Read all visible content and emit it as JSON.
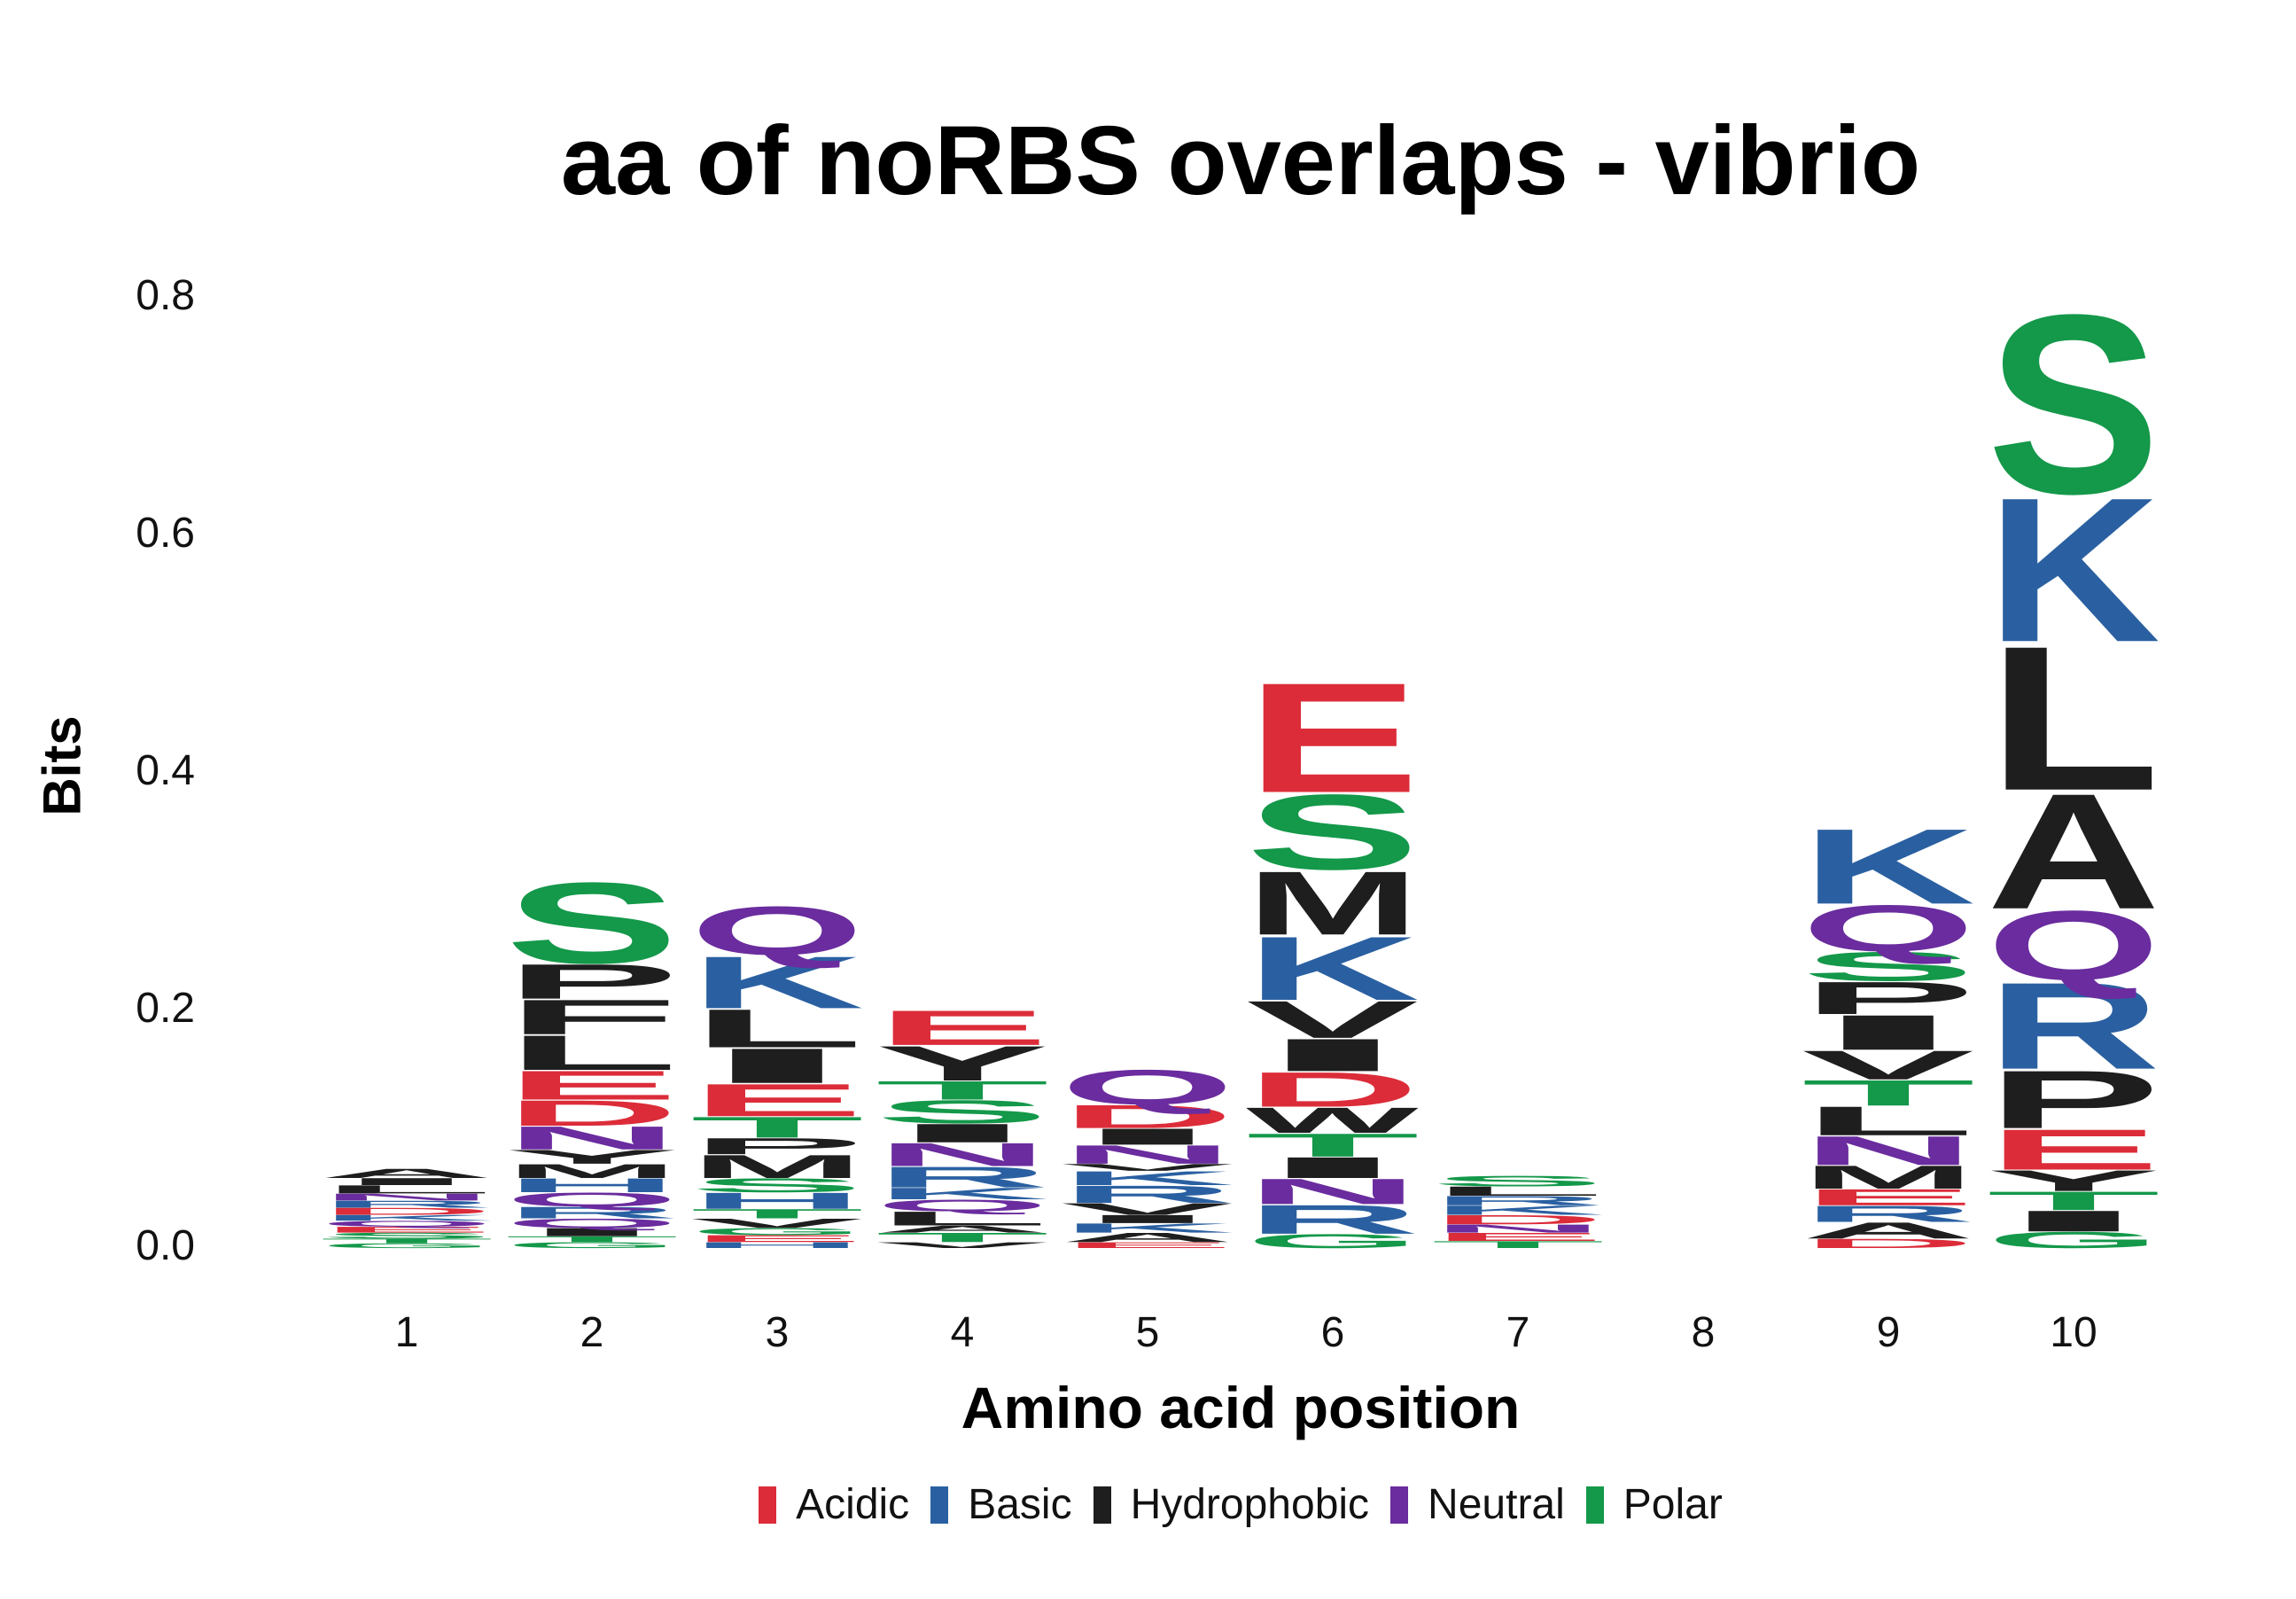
{
  "chart_data": {
    "type": "sequence-logo",
    "title": "aa of noRBS overlaps - vibrio",
    "xlabel": "Amino acid position",
    "ylabel": "Bits",
    "ylim": [
      0,
      0.8
    ],
    "yticks": [
      "0.0",
      "0.2",
      "0.4",
      "0.6",
      "0.8"
    ],
    "positions": [
      "1",
      "2",
      "3",
      "4",
      "5",
      "6",
      "7",
      "8",
      "9",
      "10"
    ],
    "legend": [
      {
        "label": "Acidic",
        "color": "#DC2C39"
      },
      {
        "label": "Basic",
        "color": "#2A60A1"
      },
      {
        "label": "Hydrophobic",
        "color": "#1E1E1E"
      },
      {
        "label": "Neutral",
        "color": "#6A2C9E"
      },
      {
        "label": "Polar",
        "color": "#14984A"
      }
    ],
    "stacks": [
      {
        "position": "1",
        "letters": [
          {
            "aa": "G",
            "bits": 0.004
          },
          {
            "aa": "T",
            "bits": 0.004
          },
          {
            "aa": "S",
            "bits": 0.005
          },
          {
            "aa": "E",
            "bits": 0.005
          },
          {
            "aa": "Q",
            "bits": 0.005
          },
          {
            "aa": "K",
            "bits": 0.005
          },
          {
            "aa": "D",
            "bits": 0.006
          },
          {
            "aa": "R",
            "bits": 0.006
          },
          {
            "aa": "N",
            "bits": 0.006
          },
          {
            "aa": "L",
            "bits": 0.007
          },
          {
            "aa": "I",
            "bits": 0.006
          },
          {
            "aa": "A",
            "bits": 0.008
          }
        ]
      },
      {
        "position": "2",
        "letters": [
          {
            "aa": "G",
            "bits": 0.005
          },
          {
            "aa": "T",
            "bits": 0.005
          },
          {
            "aa": "I",
            "bits": 0.007
          },
          {
            "aa": "Q",
            "bits": 0.008
          },
          {
            "aa": "R",
            "bits": 0.01
          },
          {
            "aa": "Q",
            "bits": 0.012
          },
          {
            "aa": "H",
            "bits": 0.012
          },
          {
            "aa": "M",
            "bits": 0.012
          },
          {
            "aa": "Y",
            "bits": 0.012
          },
          {
            "aa": "N",
            "bits": 0.02
          },
          {
            "aa": "D",
            "bits": 0.022
          },
          {
            "aa": "E",
            "bits": 0.025
          },
          {
            "aa": "L",
            "bits": 0.03
          },
          {
            "aa": "F",
            "bits": 0.03
          },
          {
            "aa": "P",
            "bits": 0.03
          },
          {
            "aa": "S",
            "bits": 0.07
          }
        ]
      },
      {
        "position": "3",
        "letters": [
          {
            "aa": "H",
            "bits": 0.005
          },
          {
            "aa": "E",
            "bits": 0.006
          },
          {
            "aa": "G",
            "bits": 0.006
          },
          {
            "aa": "V",
            "bits": 0.008
          },
          {
            "aa": "T",
            "bits": 0.008
          },
          {
            "aa": "H",
            "bits": 0.014
          },
          {
            "aa": "S",
            "bits": 0.012
          },
          {
            "aa": "M",
            "bits": 0.02
          },
          {
            "aa": "P",
            "bits": 0.014
          },
          {
            "aa": "T",
            "bits": 0.018
          },
          {
            "aa": "E",
            "bits": 0.028
          },
          {
            "aa": "I",
            "bits": 0.03
          },
          {
            "aa": "L",
            "bits": 0.033
          },
          {
            "aa": "K",
            "bits": 0.045
          },
          {
            "aa": "Q",
            "bits": 0.042
          }
        ]
      },
      {
        "position": "4",
        "letters": [
          {
            "aa": "V",
            "bits": 0.005
          },
          {
            "aa": "T",
            "bits": 0.008
          },
          {
            "aa": "A",
            "bits": 0.006
          },
          {
            "aa": "L",
            "bits": 0.012
          },
          {
            "aa": "Q",
            "bits": 0.01
          },
          {
            "aa": "K",
            "bits": 0.01
          },
          {
            "aa": "R",
            "bits": 0.018
          },
          {
            "aa": "N",
            "bits": 0.02
          },
          {
            "aa": "I",
            "bits": 0.016
          },
          {
            "aa": "S",
            "bits": 0.02
          },
          {
            "aa": "T",
            "bits": 0.016
          },
          {
            "aa": "Y",
            "bits": 0.03
          },
          {
            "aa": "E",
            "bits": 0.03
          }
        ]
      },
      {
        "position": "5",
        "letters": [
          {
            "aa": "E",
            "bits": 0.005
          },
          {
            "aa": "A",
            "bits": 0.008
          },
          {
            "aa": "K",
            "bits": 0.008
          },
          {
            "aa": "I",
            "bits": 0.007
          },
          {
            "aa": "V",
            "bits": 0.01
          },
          {
            "aa": "R",
            "bits": 0.015
          },
          {
            "aa": "K",
            "bits": 0.012
          },
          {
            "aa": "V",
            "bits": 0.006
          },
          {
            "aa": "N",
            "bits": 0.016
          },
          {
            "aa": "I",
            "bits": 0.014
          },
          {
            "aa": "D",
            "bits": 0.02
          },
          {
            "aa": "Q",
            "bits": 0.03
          }
        ]
      },
      {
        "position": "6",
        "letters": [
          {
            "aa": "G",
            "bits": 0.012
          },
          {
            "aa": "R",
            "bits": 0.025
          },
          {
            "aa": "N",
            "bits": 0.022
          },
          {
            "aa": "I",
            "bits": 0.018
          },
          {
            "aa": "T",
            "bits": 0.02
          },
          {
            "aa": "W",
            "bits": 0.022
          },
          {
            "aa": "D",
            "bits": 0.03
          },
          {
            "aa": "I",
            "bits": 0.028
          },
          {
            "aa": "V",
            "bits": 0.032
          },
          {
            "aa": "K",
            "bits": 0.055
          },
          {
            "aa": "M",
            "bits": 0.055
          },
          {
            "aa": "S",
            "bits": 0.065
          },
          {
            "aa": "E",
            "bits": 0.095
          }
        ]
      },
      {
        "position": "7",
        "letters": [
          {
            "aa": "T",
            "bits": 0.006
          },
          {
            "aa": "E",
            "bits": 0.007
          },
          {
            "aa": "N",
            "bits": 0.007
          },
          {
            "aa": "D",
            "bits": 0.008
          },
          {
            "aa": "K",
            "bits": 0.008
          },
          {
            "aa": "R",
            "bits": 0.008
          },
          {
            "aa": "L",
            "bits": 0.008
          },
          {
            "aa": "S",
            "bits": 0.009
          }
        ]
      },
      {
        "position": "8",
        "letters": []
      },
      {
        "position": "9",
        "letters": [
          {
            "aa": "D",
            "bits": 0.008
          },
          {
            "aa": "A",
            "bits": 0.014
          },
          {
            "aa": "R",
            "bits": 0.014
          },
          {
            "aa": "E",
            "bits": 0.014
          },
          {
            "aa": "M",
            "bits": 0.02
          },
          {
            "aa": "N",
            "bits": 0.025
          },
          {
            "aa": "L",
            "bits": 0.025
          },
          {
            "aa": "T",
            "bits": 0.022
          },
          {
            "aa": "V",
            "bits": 0.025
          },
          {
            "aa": "I",
            "bits": 0.03
          },
          {
            "aa": "P",
            "bits": 0.028
          },
          {
            "aa": "S",
            "bits": 0.025
          },
          {
            "aa": "Q",
            "bits": 0.04
          },
          {
            "aa": "K",
            "bits": 0.065
          }
        ]
      },
      {
        "position": "10",
        "letters": [
          {
            "aa": "G",
            "bits": 0.014
          },
          {
            "aa": "I",
            "bits": 0.018
          },
          {
            "aa": "T",
            "bits": 0.016
          },
          {
            "aa": "Y",
            "bits": 0.018
          },
          {
            "aa": "E",
            "bits": 0.035
          },
          {
            "aa": "P",
            "bits": 0.05
          },
          {
            "aa": "R",
            "bits": 0.075
          },
          {
            "aa": "Q",
            "bits": 0.06
          },
          {
            "aa": "A",
            "bits": 0.1
          },
          {
            "aa": "L",
            "bits": 0.125
          },
          {
            "aa": "K",
            "bits": 0.125
          },
          {
            "aa": "S",
            "bits": 0.155
          }
        ]
      }
    ]
  }
}
